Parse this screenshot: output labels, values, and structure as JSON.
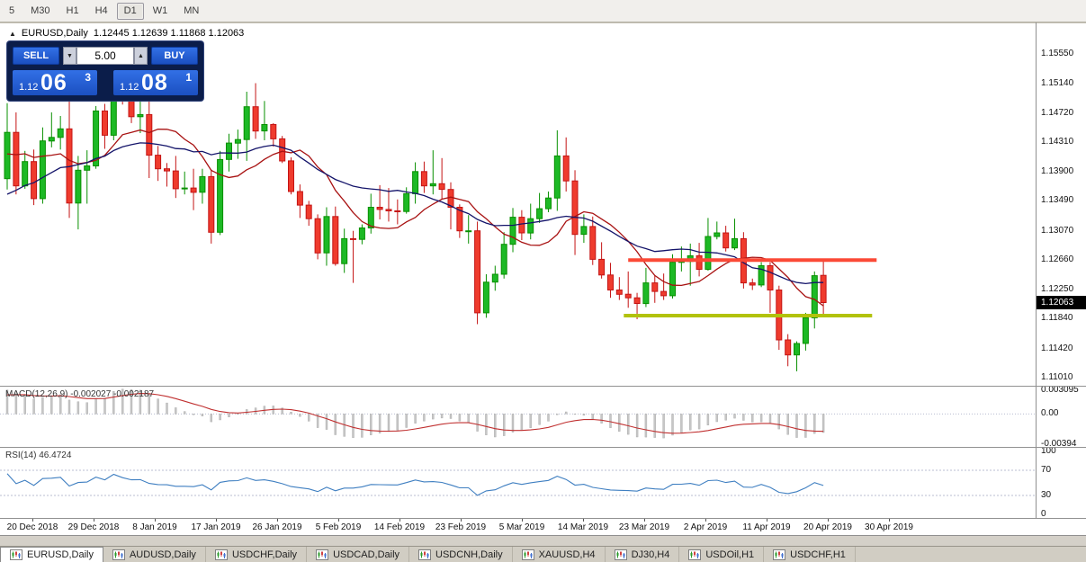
{
  "toolbar": {
    "timeframes": [
      "5",
      "M30",
      "H1",
      "H4",
      "D1",
      "W1",
      "MN"
    ],
    "active": "D1"
  },
  "header": {
    "expand_icon": "▲",
    "symbol": "EURUSD,Daily",
    "ohlc": "1.12445 1.12639 1.11868 1.12063"
  },
  "trade_panel": {
    "sell_label": "SELL",
    "buy_label": "BUY",
    "lot_value": "5.00",
    "spin_down": "▼",
    "spin_up": "▲",
    "sell_price": {
      "base": "1.12",
      "pips": "06",
      "pipette": "3"
    },
    "buy_price": {
      "base": "1.12",
      "pips": "08",
      "pipette": "1"
    }
  },
  "price_scale": {
    "labels": [
      "1.15550",
      "1.15140",
      "1.14720",
      "1.14310",
      "1.13900",
      "1.13490",
      "1.13070",
      "1.12660",
      "1.12250",
      "1.11840",
      "1.11420",
      "1.11010"
    ],
    "current": "1.12063"
  },
  "macd_panel": {
    "label": "MACD(12,26,9) -0.002027 -0.002187",
    "axis_max": "0.003095",
    "axis_zero": "0.00",
    "axis_min": "-0.00394"
  },
  "rsi_panel": {
    "label": "RSI(14) 46.4724",
    "axis": [
      "100",
      "70",
      "30",
      "0"
    ],
    "levels": [
      70,
      30
    ]
  },
  "date_axis": {
    "labels": [
      "20 Dec 2018",
      "29 Dec 2018",
      "8 Jan 2019",
      "17 Jan 2019",
      "26 Jan 2019",
      "5 Feb 2019",
      "14 Feb 2019",
      "23 Feb 2019",
      "5 Mar 2019",
      "14 Mar 2019",
      "23 Mar 2019",
      "2 Apr 2019",
      "11 Apr 2019",
      "20 Apr 2019",
      "30 Apr 2019"
    ]
  },
  "tabs": [
    {
      "label": "EURUSD,Daily",
      "active": true
    },
    {
      "label": "AUDUSD,Daily",
      "active": false
    },
    {
      "label": "USDCHF,Daily",
      "active": false
    },
    {
      "label": "USDCAD,Daily",
      "active": false
    },
    {
      "label": "USDCNH,Daily",
      "active": false
    },
    {
      "label": "XAUUSD,H4",
      "active": false
    },
    {
      "label": "DJ30,H4",
      "active": false
    },
    {
      "label": "USDOil,H1",
      "active": false
    },
    {
      "label": "USDCHF,H1",
      "active": false
    }
  ],
  "chart_data": {
    "type": "candlestick",
    "symbol": "EURUSD",
    "timeframe": "Daily",
    "title": "EURUSD,Daily",
    "ohlc_display": {
      "open": "1.12445",
      "high": "1.12639",
      "low": "1.11868",
      "close": "1.12063"
    },
    "ylim": [
      1.1101,
      1.1589
    ],
    "colors": {
      "up": "#089000",
      "up_fill": "#1db925",
      "down": "#c41414",
      "down_fill": "#ef3b2d",
      "macd_bar": "#c6c6c6",
      "macd_signal": "#c03030",
      "rsi_line": "#3f7fc1",
      "level_dotted": "#b8bcd0"
    },
    "moving_averages": [
      {
        "period": 10,
        "color": "#a81212"
      },
      {
        "period": 21,
        "color": "#14146a"
      }
    ],
    "objects": [
      {
        "name": "resistance-hline",
        "type": "hline",
        "price": 1.1266,
        "from": 70,
        "to": 98,
        "color": "#fb4936",
        "width": 4
      },
      {
        "name": "support-hline",
        "type": "hline",
        "price": 1.1188,
        "from": 69.5,
        "to": 97.5,
        "color": "#b2c20c",
        "width": 4
      }
    ],
    "macd_scale": [
      0.003095,
      -0.00394
    ],
    "warmup_closes": [
      1.133,
      1.131,
      1.1295,
      1.1282,
      1.127,
      1.1262,
      1.1255,
      1.1262,
      1.127,
      1.128,
      1.1292,
      1.1305,
      1.1318,
      1.133,
      1.1342,
      1.1355,
      1.1368,
      1.138,
      1.1392,
      1.1404,
      1.1415,
      1.1424,
      1.143,
      1.1438,
      1.144,
      1.138
    ],
    "candles": [
      [
        1.138,
        1.1486,
        1.1365,
        1.1445
      ],
      [
        1.1445,
        1.1473,
        1.1358,
        1.137
      ],
      [
        1.137,
        1.1419,
        1.1366,
        1.1404
      ],
      [
        1.1404,
        1.1421,
        1.1343,
        1.1352
      ],
      [
        1.1352,
        1.1452,
        1.1345,
        1.1433
      ],
      [
        1.1433,
        1.1473,
        1.1424,
        1.1438
      ],
      [
        1.1438,
        1.1468,
        1.1421,
        1.145
      ],
      [
        1.145,
        1.1497,
        1.1325,
        1.1346
      ],
      [
        1.1346,
        1.1412,
        1.1309,
        1.1392
      ],
      [
        1.1392,
        1.142,
        1.1345,
        1.1398
      ],
      [
        1.1398,
        1.1482,
        1.1394,
        1.1475
      ],
      [
        1.1475,
        1.1485,
        1.1422,
        1.1441
      ],
      [
        1.1441,
        1.1554,
        1.1434,
        1.1545
      ],
      [
        1.1545,
        1.1572,
        1.1484,
        1.1499
      ],
      [
        1.1499,
        1.1541,
        1.1458,
        1.1467
      ],
      [
        1.1467,
        1.1491,
        1.1444,
        1.147
      ],
      [
        1.147,
        1.149,
        1.1381,
        1.1413
      ],
      [
        1.1413,
        1.1426,
        1.1377,
        1.1394
      ],
      [
        1.1394,
        1.1402,
        1.1369,
        1.1391
      ],
      [
        1.1391,
        1.1412,
        1.1353,
        1.1366
      ],
      [
        1.1366,
        1.139,
        1.1358,
        1.1367
      ],
      [
        1.1367,
        1.1394,
        1.1336,
        1.1361
      ],
      [
        1.1361,
        1.1394,
        1.1345,
        1.1383
      ],
      [
        1.1383,
        1.1393,
        1.1289,
        1.1305
      ],
      [
        1.1305,
        1.1419,
        1.1301,
        1.1407
      ],
      [
        1.1407,
        1.1443,
        1.139,
        1.143
      ],
      [
        1.143,
        1.1449,
        1.1408,
        1.1435
      ],
      [
        1.1435,
        1.1502,
        1.1405,
        1.1481
      ],
      [
        1.1481,
        1.1514,
        1.1436,
        1.1447
      ],
      [
        1.1447,
        1.1489,
        1.1434,
        1.1456
      ],
      [
        1.1456,
        1.1458,
        1.1425,
        1.1436
      ],
      [
        1.1436,
        1.144,
        1.1402,
        1.1405
      ],
      [
        1.1405,
        1.141,
        1.1358,
        1.1362
      ],
      [
        1.1362,
        1.1372,
        1.1325,
        1.1343
      ],
      [
        1.1343,
        1.1349,
        1.1314,
        1.1324
      ],
      [
        1.1324,
        1.133,
        1.1267,
        1.1276
      ],
      [
        1.1276,
        1.134,
        1.1258,
        1.1327
      ],
      [
        1.1327,
        1.1341,
        1.1258,
        1.1261
      ],
      [
        1.1261,
        1.131,
        1.1248,
        1.1296
      ],
      [
        1.1296,
        1.1307,
        1.1234,
        1.1295
      ],
      [
        1.1295,
        1.1316,
        1.1288,
        1.1311
      ],
      [
        1.1311,
        1.1359,
        1.1303,
        1.134
      ],
      [
        1.134,
        1.1371,
        1.1323,
        1.1337
      ],
      [
        1.1337,
        1.1367,
        1.132,
        1.1335
      ],
      [
        1.1335,
        1.1351,
        1.1316,
        1.1334
      ],
      [
        1.1334,
        1.1368,
        1.1331,
        1.1359
      ],
      [
        1.1359,
        1.1403,
        1.1345,
        1.139
      ],
      [
        1.139,
        1.1404,
        1.136,
        1.137
      ],
      [
        1.137,
        1.142,
        1.1358,
        1.1373
      ],
      [
        1.1373,
        1.1409,
        1.1352,
        1.1365
      ],
      [
        1.1365,
        1.1375,
        1.1309,
        1.134
      ],
      [
        1.134,
        1.1344,
        1.1297,
        1.1307
      ],
      [
        1.1307,
        1.1329,
        1.1289,
        1.1307
      ],
      [
        1.1307,
        1.132,
        1.1176,
        1.1192
      ],
      [
        1.1192,
        1.1246,
        1.1185,
        1.1235
      ],
      [
        1.1235,
        1.1258,
        1.1223,
        1.1246
      ],
      [
        1.1246,
        1.1305,
        1.124,
        1.1288
      ],
      [
        1.1288,
        1.1339,
        1.1277,
        1.1326
      ],
      [
        1.1326,
        1.1336,
        1.1294,
        1.1304
      ],
      [
        1.1304,
        1.1345,
        1.1295,
        1.1324
      ],
      [
        1.1324,
        1.136,
        1.1318,
        1.1338
      ],
      [
        1.1338,
        1.1362,
        1.1333,
        1.1353
      ],
      [
        1.1353,
        1.1448,
        1.1335,
        1.1412
      ],
      [
        1.1412,
        1.1438,
        1.1362,
        1.1377
      ],
      [
        1.1377,
        1.1392,
        1.1273,
        1.1302
      ],
      [
        1.1302,
        1.133,
        1.129,
        1.1313
      ],
      [
        1.1313,
        1.1327,
        1.1259,
        1.1267
      ],
      [
        1.1267,
        1.1291,
        1.124,
        1.1245
      ],
      [
        1.1245,
        1.1262,
        1.1213,
        1.1224
      ],
      [
        1.1224,
        1.1242,
        1.121,
        1.1218
      ],
      [
        1.1218,
        1.125,
        1.1199,
        1.1213
      ],
      [
        1.1213,
        1.122,
        1.1183,
        1.1205
      ],
      [
        1.1205,
        1.1255,
        1.12,
        1.1234
      ],
      [
        1.1234,
        1.1244,
        1.1206,
        1.1222
      ],
      [
        1.1222,
        1.1247,
        1.121,
        1.1216
      ],
      [
        1.1216,
        1.1274,
        1.1212,
        1.1263
      ],
      [
        1.1263,
        1.1285,
        1.125,
        1.1264
      ],
      [
        1.1264,
        1.1289,
        1.123,
        1.1272
      ],
      [
        1.1272,
        1.129,
        1.1243,
        1.1253
      ],
      [
        1.1253,
        1.1325,
        1.1251,
        1.1299
      ],
      [
        1.1299,
        1.132,
        1.1295,
        1.1304
      ],
      [
        1.1304,
        1.1314,
        1.1278,
        1.1283
      ],
      [
        1.1283,
        1.1324,
        1.128,
        1.1296
      ],
      [
        1.1296,
        1.1305,
        1.1226,
        1.1234
      ],
      [
        1.1234,
        1.124,
        1.1224,
        1.1231
      ],
      [
        1.1231,
        1.1263,
        1.1228,
        1.1258
      ],
      [
        1.1258,
        1.1263,
        1.1192,
        1.1224
      ],
      [
        1.1224,
        1.123,
        1.114,
        1.1154
      ],
      [
        1.1154,
        1.1162,
        1.1117,
        1.1133
      ],
      [
        1.1133,
        1.1152,
        1.111,
        1.1149
      ],
      [
        1.1149,
        1.1192,
        1.1139,
        1.1185
      ],
      [
        1.1185,
        1.125,
        1.117,
        1.1244
      ],
      [
        1.12445,
        1.12639,
        1.11868,
        1.12063
      ]
    ]
  }
}
